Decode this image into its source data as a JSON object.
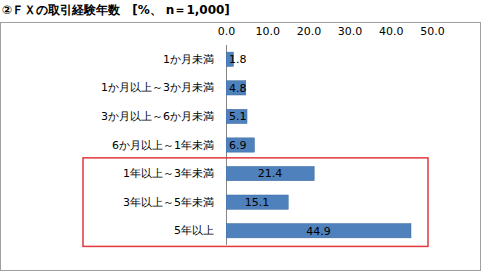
{
  "chart_data": {
    "type": "bar",
    "orientation": "horizontal",
    "title": "②ＦＸの取引経験年数　[%、 n＝1,000]",
    "categories": [
      "1か月未満",
      "1か月以上～3か月未満",
      "3か月以上～6か月未満",
      "6か月以上～1年未満",
      "1年以上～3年未満",
      "3年以上～5年未満",
      "5年以上"
    ],
    "values": [
      1.8,
      4.8,
      5.1,
      6.9,
      21.4,
      15.1,
      44.9
    ],
    "color": "#4f81bd",
    "xlim": [
      0,
      50
    ],
    "xticks": [
      {
        "value": 0,
        "label": "0.0"
      },
      {
        "value": 10,
        "label": "10.0"
      },
      {
        "value": 20,
        "label": "20.0"
      },
      {
        "value": 30,
        "label": "30.0"
      },
      {
        "value": 40,
        "label": "40.0"
      },
      {
        "value": 50,
        "label": "50.0"
      }
    ],
    "grid": false,
    "data_labels": true,
    "annotations": [
      {
        "shape": "rect",
        "color": "#e0393e",
        "categories": [
          "1年以上～3年未満",
          "3年以上～5年未満",
          "5年以上"
        ]
      }
    ]
  }
}
